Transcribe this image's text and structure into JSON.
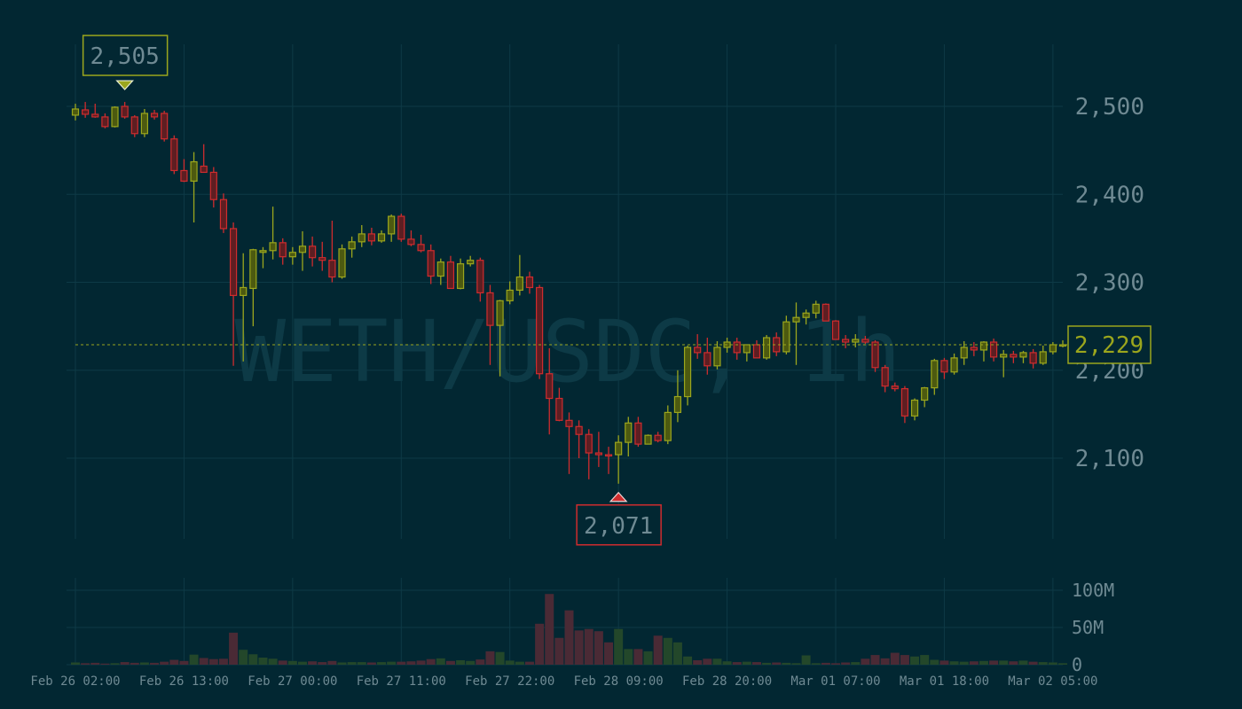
{
  "chart_data": {
    "type": "candlestick",
    "watermark": "WETH/USDC, 1h",
    "price_axis": {
      "ticks": [
        2100,
        2200,
        2300,
        2400,
        2500
      ],
      "tick_labels": [
        "2,100",
        "2,200",
        "2,300",
        "2,400",
        "2,500"
      ]
    },
    "volume_axis": {
      "ticks": [
        0,
        50000000,
        100000000
      ],
      "tick_labels": [
        "0",
        "50M",
        "100M"
      ]
    },
    "x_tick_labels": [
      "Feb 26 02:00",
      "Feb 26 13:00",
      "Feb 27 00:00",
      "Feb 27 11:00",
      "Feb 27 22:00",
      "Feb 28 09:00",
      "Feb 28 20:00",
      "Mar 01 07:00",
      "Mar 01 18:00",
      "Mar 02 05:00"
    ],
    "current_price": 2229,
    "current_price_label": "2,229",
    "high_marker": {
      "index": 5,
      "value": 2505,
      "label": "2,505"
    },
    "low_marker": {
      "index": 55,
      "value": 2071,
      "label": "2,071"
    },
    "colors": {
      "up": "#9ba61d",
      "down": "#cf2c2e",
      "grid": "#0e3a46",
      "text": "#6f8a93",
      "background": "#022732"
    },
    "candles": [
      [
        2490,
        2503,
        2484,
        2497
      ],
      [
        2496,
        2505,
        2487,
        2491
      ],
      [
        2491,
        2503,
        2487,
        2488
      ],
      [
        2488,
        2492,
        2475,
        2477
      ],
      [
        2477,
        2500,
        2476,
        2499
      ],
      [
        2500,
        2505,
        2486,
        2488
      ],
      [
        2488,
        2490,
        2465,
        2469
      ],
      [
        2469,
        2497,
        2465,
        2492
      ],
      [
        2492,
        2496,
        2485,
        2488
      ],
      [
        2492,
        2495,
        2460,
        2463
      ],
      [
        2463,
        2467,
        2423,
        2427
      ],
      [
        2427,
        2440,
        2414,
        2415
      ],
      [
        2415,
        2448,
        2368,
        2437
      ],
      [
        2432,
        2457,
        2425,
        2425
      ],
      [
        2425,
        2431,
        2385,
        2394
      ],
      [
        2394,
        2401,
        2356,
        2361
      ],
      [
        2361,
        2368,
        2205,
        2285
      ],
      [
        2285,
        2333,
        2210,
        2294
      ],
      [
        2293,
        2338,
        2250,
        2337
      ],
      [
        2334,
        2340,
        2316,
        2336
      ],
      [
        2336,
        2386,
        2326,
        2345
      ],
      [
        2345,
        2350,
        2320,
        2329
      ],
      [
        2329,
        2340,
        2320,
        2334
      ],
      [
        2334,
        2358,
        2313,
        2341
      ],
      [
        2341,
        2352,
        2318,
        2328
      ],
      [
        2328,
        2346,
        2313,
        2325
      ],
      [
        2325,
        2370,
        2300,
        2306
      ],
      [
        2306,
        2343,
        2304,
        2338
      ],
      [
        2338,
        2352,
        2328,
        2346
      ],
      [
        2346,
        2365,
        2340,
        2355
      ],
      [
        2355,
        2362,
        2342,
        2347
      ],
      [
        2347,
        2359,
        2345,
        2355
      ],
      [
        2355,
        2377,
        2346,
        2375
      ],
      [
        2375,
        2378,
        2346,
        2349
      ],
      [
        2349,
        2359,
        2341,
        2343
      ],
      [
        2343,
        2354,
        2334,
        2336
      ],
      [
        2336,
        2343,
        2298,
        2307
      ],
      [
        2307,
        2327,
        2297,
        2323
      ],
      [
        2323,
        2330,
        2294,
        2293
      ],
      [
        2293,
        2327,
        2292,
        2321
      ],
      [
        2321,
        2330,
        2318,
        2325
      ],
      [
        2325,
        2328,
        2278,
        2288
      ],
      [
        2288,
        2297,
        2206,
        2251
      ],
      [
        2251,
        2280,
        2193,
        2279
      ],
      [
        2279,
        2301,
        2275,
        2291
      ],
      [
        2291,
        2331,
        2285,
        2306
      ],
      [
        2306,
        2312,
        2287,
        2294
      ],
      [
        2294,
        2297,
        2190,
        2196
      ],
      [
        2196,
        2225,
        2127,
        2168
      ],
      [
        2168,
        2180,
        2142,
        2143
      ],
      [
        2143,
        2152,
        2082,
        2136
      ],
      [
        2136,
        2143,
        2100,
        2127
      ],
      [
        2127,
        2133,
        2076,
        2106
      ],
      [
        2106,
        2130,
        2090,
        2104
      ],
      [
        2104,
        2113,
        2082,
        2103
      ],
      [
        2104,
        2126,
        2071,
        2118
      ],
      [
        2118,
        2147,
        2102,
        2140
      ],
      [
        2140,
        2147,
        2113,
        2116
      ],
      [
        2116,
        2127,
        2116,
        2126
      ],
      [
        2126,
        2130,
        2118,
        2120
      ],
      [
        2120,
        2160,
        2116,
        2152
      ],
      [
        2152,
        2200,
        2141,
        2170
      ],
      [
        2170,
        2228,
        2160,
        2226
      ],
      [
        2226,
        2241,
        2213,
        2220
      ],
      [
        2220,
        2237,
        2195,
        2205
      ],
      [
        2205,
        2233,
        2201,
        2226
      ],
      [
        2226,
        2237,
        2220,
        2232
      ],
      [
        2232,
        2237,
        2212,
        2220
      ],
      [
        2220,
        2228,
        2210,
        2229
      ],
      [
        2229,
        2234,
        2214,
        2214
      ],
      [
        2214,
        2240,
        2212,
        2237
      ],
      [
        2237,
        2243,
        2216,
        2221
      ],
      [
        2221,
        2262,
        2218,
        2255
      ],
      [
        2255,
        2277,
        2206,
        2260
      ],
      [
        2260,
        2269,
        2252,
        2265
      ],
      [
        2265,
        2279,
        2259,
        2275
      ],
      [
        2275,
        2276,
        2256,
        2256
      ],
      [
        2256,
        2257,
        2238,
        2235
      ],
      [
        2235,
        2240,
        2225,
        2232
      ],
      [
        2232,
        2241,
        2226,
        2235
      ],
      [
        2235,
        2239,
        2230,
        2232
      ],
      [
        2232,
        2234,
        2198,
        2203
      ],
      [
        2203,
        2206,
        2175,
        2182
      ],
      [
        2182,
        2186,
        2176,
        2179
      ],
      [
        2179,
        2182,
        2140,
        2148
      ],
      [
        2148,
        2168,
        2143,
        2166
      ],
      [
        2166,
        2181,
        2158,
        2180
      ],
      [
        2180,
        2213,
        2172,
        2211
      ],
      [
        2211,
        2214,
        2190,
        2198
      ],
      [
        2198,
        2219,
        2195,
        2214
      ],
      [
        2214,
        2233,
        2206,
        2226
      ],
      [
        2226,
        2232,
        2216,
        2223
      ],
      [
        2223,
        2233,
        2210,
        2232
      ],
      [
        2232,
        2236,
        2210,
        2215
      ],
      [
        2215,
        2223,
        2192,
        2218
      ],
      [
        2218,
        2222,
        2208,
        2215
      ],
      [
        2215,
        2222,
        2208,
        2220
      ],
      [
        2220,
        2224,
        2202,
        2208
      ],
      [
        2208,
        2228,
        2206,
        2221
      ],
      [
        2221,
        2232,
        2218,
        2229
      ],
      [
        2229,
        2234,
        2226,
        2229
      ]
    ],
    "volume_millions": [
      3,
      2,
      2.5,
      1.5,
      2,
      3.5,
      2.5,
      3,
      2.5,
      4,
      6.5,
      5,
      13.5,
      9,
      7.5,
      8,
      43,
      20,
      14,
      9.5,
      8,
      5.5,
      5,
      4,
      4.5,
      3.5,
      5,
      3,
      3.5,
      3.5,
      3,
      3.5,
      4,
      4,
      4.5,
      5.5,
      7.5,
      8.5,
      5,
      6,
      5,
      7,
      18,
      17,
      5.5,
      4,
      4,
      55,
      95,
      36,
      73,
      46,
      48,
      45,
      30,
      48,
      21,
      21,
      18,
      39,
      36,
      30,
      11,
      6,
      8,
      8,
      4.5,
      3.5,
      4,
      3.5,
      2.5,
      3,
      2.5,
      2,
      12.5,
      2,
      2.5,
      2,
      3,
      3.5,
      8,
      13,
      8.5,
      16,
      13,
      11,
      13,
      6.5,
      5.5,
      4.5,
      4,
      4.5,
      5,
      5.5,
      5.5,
      4.5,
      5.5,
      4,
      3.5,
      3,
      2
    ]
  }
}
